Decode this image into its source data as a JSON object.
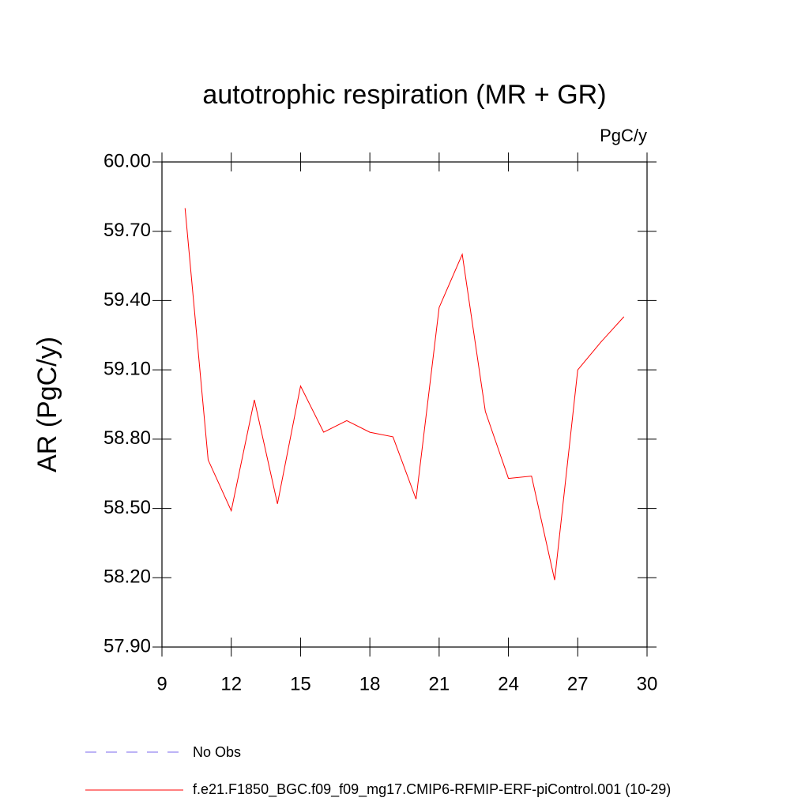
{
  "chart_data": {
    "type": "line",
    "title": "autotrophic respiration (MR + GR)",
    "units": "PgC/y",
    "y_label": "AR  (PgC/y)",
    "x": [
      10,
      11,
      12,
      13,
      14,
      15,
      16,
      17,
      18,
      19,
      20,
      21,
      22,
      23,
      24,
      25,
      26,
      27,
      28,
      29
    ],
    "series": [
      {
        "name": "f.e21.F1850_BGC.f09_f09_mg17.CMIP6-RFMIP-ERF-piControl.001 (10-29)",
        "color": "#ff0000",
        "values": [
          59.8,
          58.71,
          58.49,
          58.97,
          58.52,
          59.03,
          58.83,
          58.88,
          58.83,
          58.81,
          58.54,
          59.37,
          59.6,
          58.92,
          58.63,
          58.64,
          58.19,
          59.1,
          59.22,
          59.33
        ]
      }
    ],
    "obs_legend": {
      "name": "No Obs",
      "color": "#7b68ee",
      "dashed": true
    },
    "xlim": [
      9,
      30
    ],
    "xticks": [
      9,
      12,
      15,
      18,
      21,
      24,
      27,
      30
    ],
    "ylim": [
      57.9,
      60.0
    ],
    "yticks": [
      {
        "value": 57.9,
        "label": "57.90"
      },
      {
        "value": 58.2,
        "label": "58.20"
      },
      {
        "value": 58.5,
        "label": "58.50"
      },
      {
        "value": 58.8,
        "label": "58.80"
      },
      {
        "value": 59.1,
        "label": "59.10"
      },
      {
        "value": 59.4,
        "label": "59.40"
      },
      {
        "value": 59.7,
        "label": "59.70"
      },
      {
        "value": 60.0,
        "label": "60.00"
      }
    ],
    "grid": false
  }
}
